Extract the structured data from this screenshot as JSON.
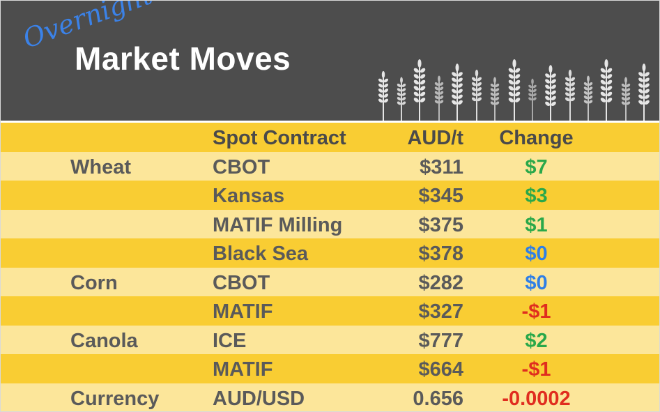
{
  "header": {
    "script_text": "Overnight",
    "title": "Market Moves",
    "icon": "wheat-stalks-icon"
  },
  "table": {
    "columns": [
      "",
      "Spot Contract",
      "AUD/t",
      "Change"
    ],
    "rows": [
      {
        "commodity": "Wheat",
        "contract": "CBOT",
        "price": "$311",
        "change": "$7",
        "direction": "pos"
      },
      {
        "commodity": "",
        "contract": "Kansas",
        "price": "$345",
        "change": "$3",
        "direction": "pos"
      },
      {
        "commodity": "",
        "contract": "MATIF Milling",
        "price": "$375",
        "change": "$1",
        "direction": "pos"
      },
      {
        "commodity": "",
        "contract": "Black Sea",
        "price": "$378",
        "change": "$0",
        "direction": "zero"
      },
      {
        "commodity": "Corn",
        "contract": "CBOT",
        "price": "$282",
        "change": "$0",
        "direction": "zero"
      },
      {
        "commodity": "",
        "contract": "MATIF",
        "price": "$327",
        "change": "-$1",
        "direction": "neg"
      },
      {
        "commodity": "Canola",
        "contract": "ICE",
        "price": "$777",
        "change": "$2",
        "direction": "pos"
      },
      {
        "commodity": "",
        "contract": "MATIF",
        "price": "$664",
        "change": "-$1",
        "direction": "neg"
      },
      {
        "commodity": "Currency",
        "contract": "AUD/USD",
        "price": "0.656",
        "change": "-0.0002",
        "direction": "neg"
      }
    ]
  },
  "colors": {
    "header_bg": "#4d4d4d",
    "row_dark": "#f9cd33",
    "row_light": "#fce69a",
    "positive": "#2aa84a",
    "zero": "#2f7fe6",
    "negative": "#e02d1f",
    "script_blue": "#3b82e8"
  }
}
